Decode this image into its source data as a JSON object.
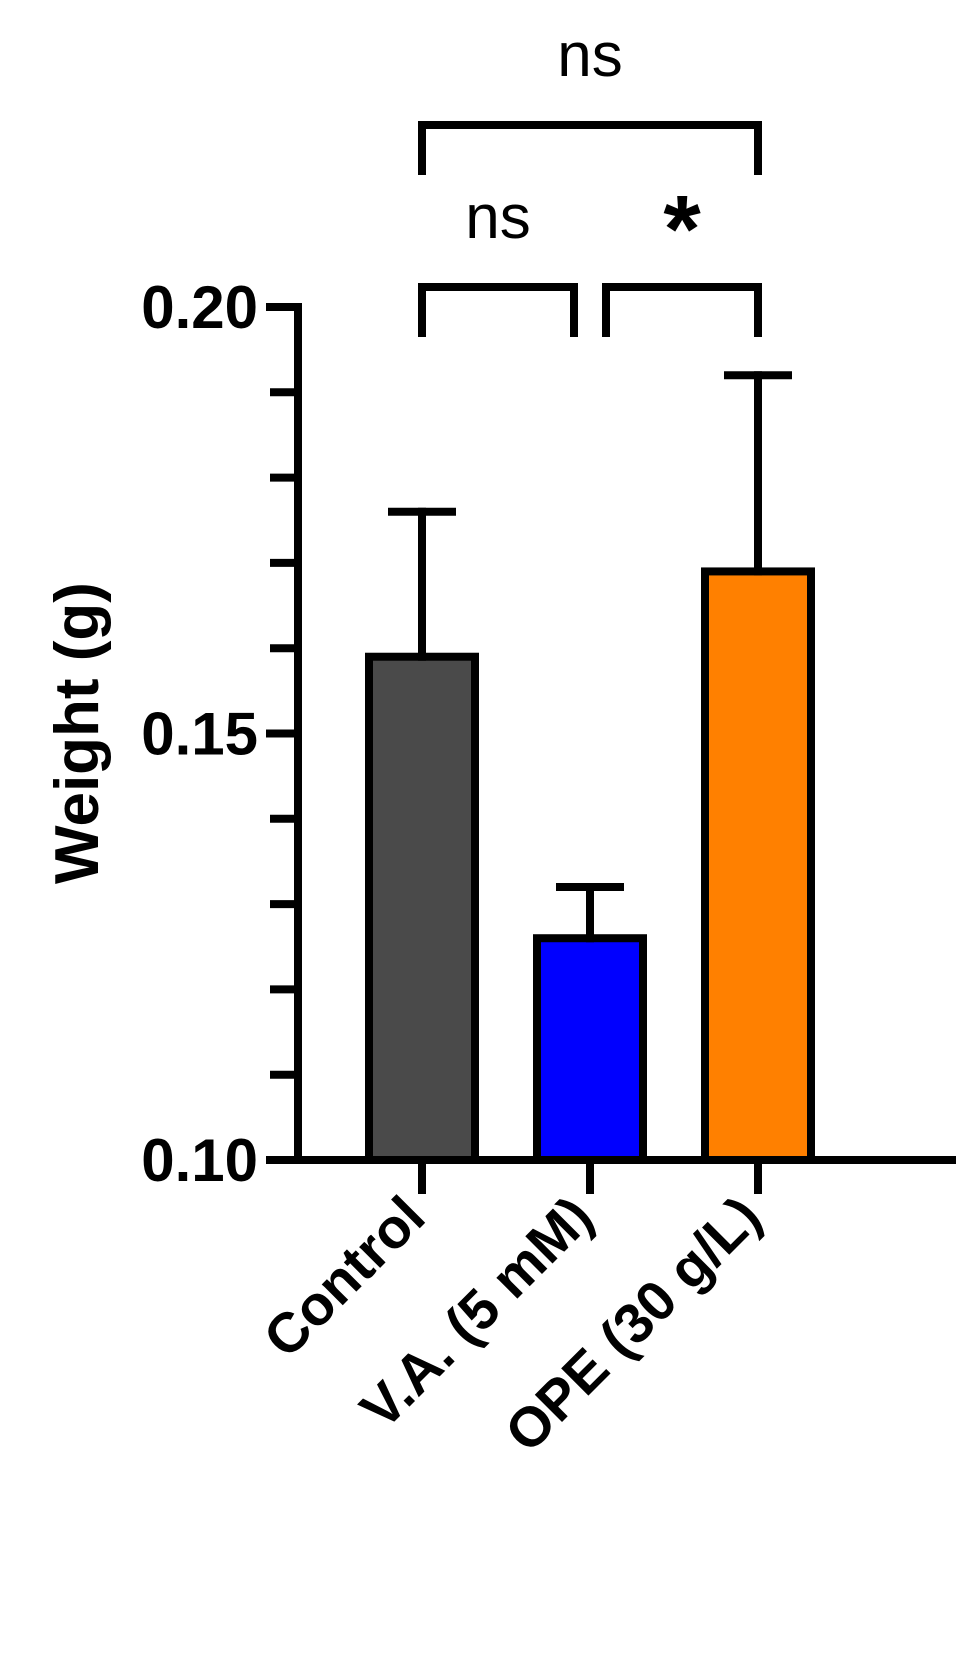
{
  "chart_data": {
    "type": "bar",
    "title": "",
    "xlabel": "",
    "ylabel": "Weight (g)",
    "ylim": [
      0.1,
      0.2
    ],
    "yticks": [
      "0.10",
      "0.15",
      "0.20"
    ],
    "yminor_step": 0.01,
    "grid": false,
    "categories": [
      "Control",
      "V.A. (5 mM)",
      "OPE (30 g/L)"
    ],
    "values": [
      0.159,
      0.126,
      0.169
    ],
    "errors": [
      0.017,
      0.006,
      0.023
    ],
    "colors": [
      "#4a4a4a",
      "#0000ff",
      "#ff8000"
    ],
    "comparisons": [
      {
        "from": 0,
        "to": 2,
        "label": "ns"
      },
      {
        "from": 0,
        "to": 1,
        "label": "ns"
      },
      {
        "from": 1,
        "to": 2,
        "label": "*"
      }
    ]
  }
}
